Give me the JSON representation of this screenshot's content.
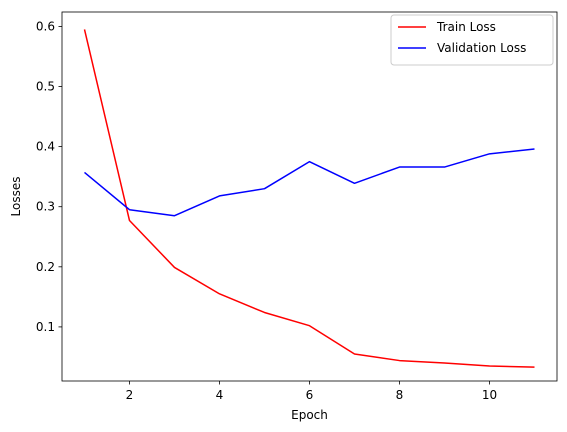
{
  "chart_data": {
    "type": "line",
    "title": "",
    "xlabel": "Epoch",
    "ylabel": "Losses",
    "xlim": [
      0.5,
      11.5
    ],
    "ylim": [
      0.01,
      0.624
    ],
    "xticks": [
      2,
      4,
      6,
      8,
      10
    ],
    "xtick_labels": [
      "2",
      "4",
      "6",
      "8",
      "10"
    ],
    "yticks": [
      0.1,
      0.2,
      0.3,
      0.4,
      0.5,
      0.6
    ],
    "ytick_labels": [
      "0.1",
      "0.2",
      "0.3",
      "0.4",
      "0.5",
      "0.6"
    ],
    "grid": false,
    "legend_position": "upper-right",
    "x": [
      1,
      2,
      3,
      4,
      5,
      6,
      7,
      8,
      9,
      10,
      11
    ],
    "series": [
      {
        "name": "Train Loss",
        "color": "#ff0000",
        "values": [
          0.595,
          0.277,
          0.199,
          0.155,
          0.124,
          0.102,
          0.055,
          0.044,
          0.04,
          0.035,
          0.033
        ]
      },
      {
        "name": "Validation Loss",
        "color": "#0000ff",
        "values": [
          0.357,
          0.295,
          0.285,
          0.318,
          0.33,
          0.375,
          0.339,
          0.366,
          0.366,
          0.388,
          0.396
        ]
      }
    ]
  }
}
